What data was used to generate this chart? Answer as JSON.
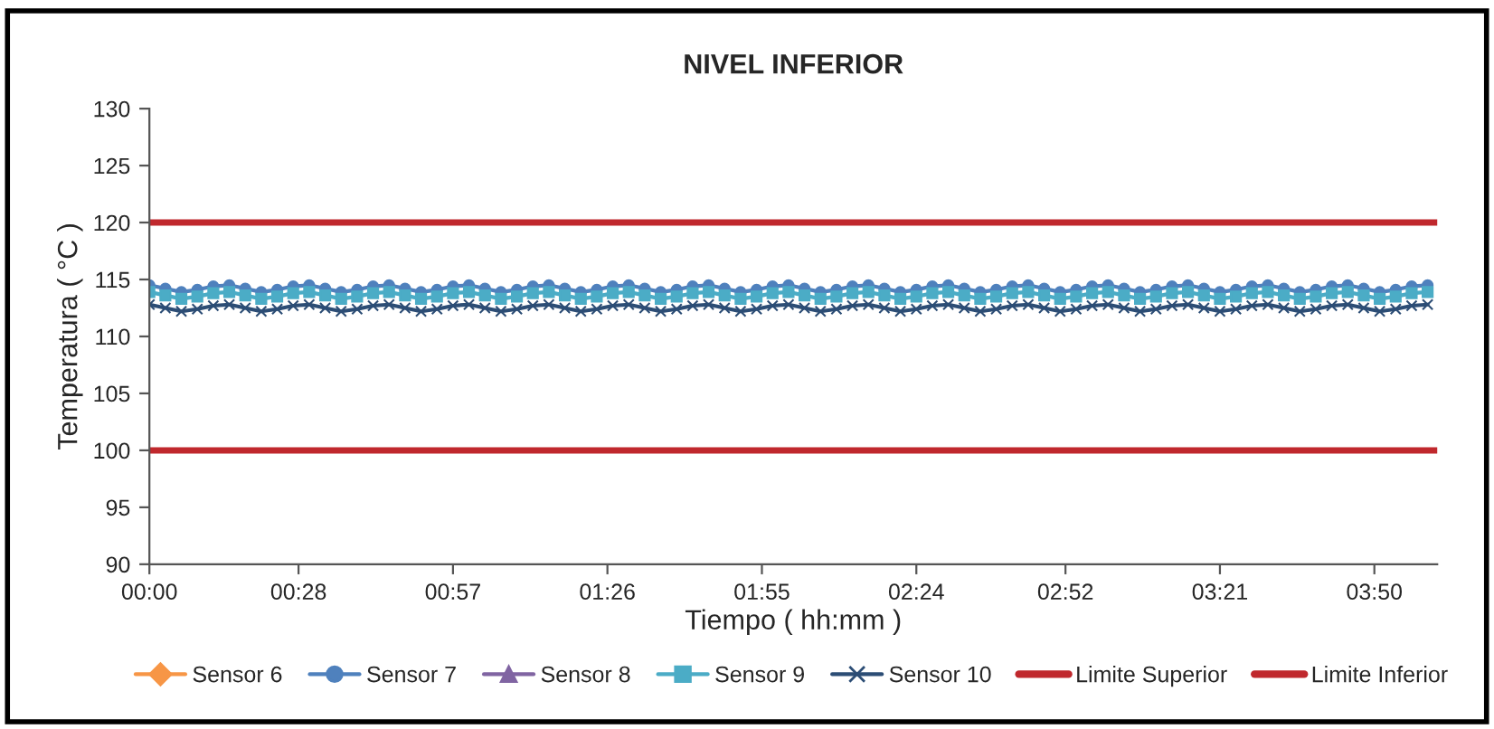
{
  "chart_data": {
    "type": "line",
    "title": "NIVEL INFERIOR",
    "xlabel": "Tiempo ( hh:mm )",
    "ylabel": "Temperatura ( °C )",
    "x": [
      0,
      0.05,
      0.1,
      0.15,
      0.2,
      0.25,
      0.3,
      0.35,
      0.4,
      0.45,
      0.5,
      0.55,
      0.6,
      0.65,
      0.7,
      0.75,
      0.8,
      0.85,
      0.9,
      0.95,
      1.0,
      1.05,
      1.1,
      1.15,
      1.2,
      1.25,
      1.3,
      1.35,
      1.4,
      1.45,
      1.5,
      1.55,
      1.6,
      1.65,
      1.7,
      1.75,
      1.8,
      1.85,
      1.9,
      1.95,
      2.0,
      2.05,
      2.1,
      2.15,
      2.2,
      2.25,
      2.3,
      2.35,
      2.4,
      2.45,
      2.5,
      2.55,
      2.6,
      2.65,
      2.7,
      2.75,
      2.8,
      2.85,
      2.9,
      2.95,
      3.0,
      3.05,
      3.1,
      3.15,
      3.2,
      3.25,
      3.3,
      3.35,
      3.4,
      3.45,
      3.5,
      3.55,
      3.6,
      3.65,
      3.7,
      3.75,
      3.8,
      3.85,
      3.9,
      3.95,
      4.0
    ],
    "series": [
      {
        "name": "Sensor 6",
        "color": "#f79646",
        "marker": "diamond",
        "values": [
          null,
          null,
          null,
          null,
          null,
          null,
          null,
          null,
          null,
          null,
          null,
          null,
          null,
          null,
          null,
          null,
          null,
          null,
          null,
          null,
          null,
          null,
          null,
          null,
          null,
          null,
          null,
          null,
          null,
          null,
          null,
          null,
          null,
          null,
          null,
          null,
          null,
          null,
          null,
          null,
          null,
          null,
          null,
          null,
          null,
          null,
          null,
          null,
          null,
          null,
          null,
          null,
          null,
          null,
          null,
          null,
          null,
          null,
          null,
          null,
          null,
          null,
          null,
          null,
          null,
          null,
          null,
          null,
          null,
          null,
          null,
          null,
          null,
          null,
          null,
          null,
          null,
          null,
          null,
          null,
          null
        ]
      },
      {
        "name": "Sensor 7",
        "color": "#4f81bd",
        "marker": "circle",
        "values": [
          114.5,
          114.2,
          113.9,
          114.1,
          114.4,
          114.5,
          114.2,
          113.9,
          114.1,
          114.4,
          114.5,
          114.2,
          113.9,
          114.1,
          114.4,
          114.5,
          114.2,
          113.9,
          114.1,
          114.4,
          114.5,
          114.2,
          113.9,
          114.1,
          114.4,
          114.5,
          114.2,
          113.9,
          114.1,
          114.4,
          114.5,
          114.2,
          113.9,
          114.1,
          114.4,
          114.5,
          114.2,
          113.9,
          114.1,
          114.4,
          114.5,
          114.2,
          113.9,
          114.1,
          114.4,
          114.5,
          114.2,
          113.9,
          114.1,
          114.4,
          114.5,
          114.2,
          113.9,
          114.1,
          114.4,
          114.5,
          114.2,
          113.9,
          114.1,
          114.4,
          114.5,
          114.2,
          113.9,
          114.1,
          114.4,
          114.5,
          114.2,
          113.9,
          114.1,
          114.4,
          114.5,
          114.2,
          113.9,
          114.1,
          114.4,
          114.5,
          114.2,
          113.9,
          114.1,
          114.4,
          114.5
        ]
      },
      {
        "name": "Sensor 8",
        "color": "#8064a2",
        "marker": "triangle",
        "values": [
          null,
          null,
          null,
          null,
          null,
          null,
          null,
          null,
          null,
          null,
          null,
          null,
          null,
          null,
          null,
          null,
          null,
          null,
          null,
          null,
          null,
          null,
          null,
          null,
          null,
          null,
          null,
          null,
          null,
          null,
          null,
          null,
          null,
          null,
          null,
          null,
          null,
          null,
          null,
          null,
          null,
          null,
          null,
          null,
          null,
          null,
          null,
          null,
          null,
          null,
          null,
          null,
          null,
          null,
          null,
          null,
          null,
          null,
          null,
          null,
          null,
          null,
          null,
          null,
          null,
          null,
          null,
          null,
          null,
          null,
          null,
          null,
          null,
          null,
          null,
          null,
          null,
          null,
          null,
          null,
          null
        ]
      },
      {
        "name": "Sensor 9",
        "color": "#4bacc6",
        "marker": "square",
        "values": [
          113.9,
          113.6,
          113.3,
          113.5,
          113.8,
          113.9,
          113.6,
          113.3,
          113.5,
          113.8,
          113.9,
          113.6,
          113.3,
          113.5,
          113.8,
          113.9,
          113.6,
          113.3,
          113.5,
          113.8,
          113.9,
          113.6,
          113.3,
          113.5,
          113.8,
          113.9,
          113.6,
          113.3,
          113.5,
          113.8,
          113.9,
          113.6,
          113.3,
          113.5,
          113.8,
          113.9,
          113.6,
          113.3,
          113.5,
          113.8,
          113.9,
          113.6,
          113.3,
          113.5,
          113.8,
          113.9,
          113.6,
          113.3,
          113.5,
          113.8,
          113.9,
          113.6,
          113.3,
          113.5,
          113.8,
          113.9,
          113.6,
          113.3,
          113.5,
          113.8,
          113.9,
          113.6,
          113.3,
          113.5,
          113.8,
          113.9,
          113.6,
          113.3,
          113.5,
          113.8,
          113.9,
          113.6,
          113.3,
          113.5,
          113.8,
          113.9,
          113.6,
          113.3,
          113.5,
          113.8,
          113.9
        ]
      },
      {
        "name": "Sensor 10",
        "color": "#2c4d75",
        "marker": "cross",
        "values": [
          112.8,
          112.5,
          112.2,
          112.4,
          112.7,
          112.8,
          112.5,
          112.2,
          112.4,
          112.7,
          112.8,
          112.5,
          112.2,
          112.4,
          112.7,
          112.8,
          112.5,
          112.2,
          112.4,
          112.7,
          112.8,
          112.5,
          112.2,
          112.4,
          112.7,
          112.8,
          112.5,
          112.2,
          112.4,
          112.7,
          112.8,
          112.5,
          112.2,
          112.4,
          112.7,
          112.8,
          112.5,
          112.2,
          112.4,
          112.7,
          112.8,
          112.5,
          112.2,
          112.4,
          112.7,
          112.8,
          112.5,
          112.2,
          112.4,
          112.7,
          112.8,
          112.5,
          112.2,
          112.4,
          112.7,
          112.8,
          112.5,
          112.2,
          112.4,
          112.7,
          112.8,
          112.5,
          112.2,
          112.4,
          112.7,
          112.8,
          112.5,
          112.2,
          112.4,
          112.7,
          112.8,
          112.5,
          112.2,
          112.4,
          112.7,
          112.8,
          112.5,
          112.2,
          112.4,
          112.7,
          112.8
        ]
      }
    ],
    "ref_lines": [
      {
        "axis": "y",
        "value": 120,
        "label": "Limite Superior",
        "color": "#c0282d"
      },
      {
        "axis": "y",
        "value": 100,
        "label": "Limite Inferior",
        "color": "#c0282d"
      }
    ],
    "xlim": [
      0,
      4.03
    ],
    "xticks": [
      {
        "value": 0,
        "label": "00:00"
      },
      {
        "value": 0.4667,
        "label": "00:28"
      },
      {
        "value": 0.95,
        "label": "00:57"
      },
      {
        "value": 1.4333,
        "label": "01:26"
      },
      {
        "value": 1.9167,
        "label": "01:55"
      },
      {
        "value": 2.4,
        "label": "02:24"
      },
      {
        "value": 2.8667,
        "label": "02:52"
      },
      {
        "value": 3.35,
        "label": "03:21"
      },
      {
        "value": 3.8333,
        "label": "03:50"
      }
    ],
    "ylim": [
      90,
      130
    ],
    "yticks": [
      90,
      95,
      100,
      105,
      110,
      115,
      120,
      125,
      130
    ],
    "grid": false,
    "legend": "bottom"
  }
}
